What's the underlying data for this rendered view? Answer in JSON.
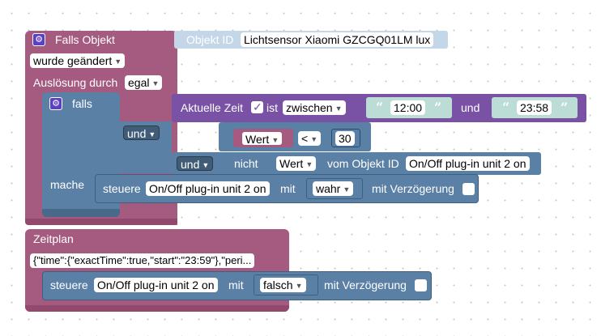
{
  "main_block": {
    "title": "Falls Objekt",
    "object_id_label": "Objekt ID",
    "object_id_value": "Lichtsensor Xiaomi GZCGQ01LM lux",
    "trigger_condition": "wurde geändert",
    "trigger_label": "Auslösung durch",
    "trigger_value": "egal"
  },
  "if_block": {
    "falls_label": "falls",
    "time_label": "Aktuelle Zeit",
    "time_checked": true,
    "is_label": "ist",
    "compare_op": "zwischen",
    "time_start": "12:00",
    "and_label": "und",
    "time_end": "23:58",
    "and_dropdown_1": "und",
    "value_dropdown": "Wert",
    "less_op": "<",
    "threshold": "30",
    "and_dropdown_2": "und",
    "not_label": "nicht",
    "value_dropdown_2": "Wert",
    "from_object_label": "vom Objekt ID",
    "object_2": "On/Off plug-in unit 2 on",
    "do_label": "mache"
  },
  "action_1": {
    "control_label": "steuere",
    "target": "On/Off plug-in unit 2 on",
    "with_label": "mit",
    "value": "wahr",
    "delay_label": "mit Verzögerung"
  },
  "schedule_block": {
    "title": "Zeitplan",
    "config": "{\"time\":{\"exactTime\":true,\"start\":\"23:59\"},\"peri..."
  },
  "action_2": {
    "control_label": "steuere",
    "target": "On/Off plug-in unit 2 on",
    "with_label": "mit",
    "value": "falsch",
    "delay_label": "mit Verzögerung"
  }
}
